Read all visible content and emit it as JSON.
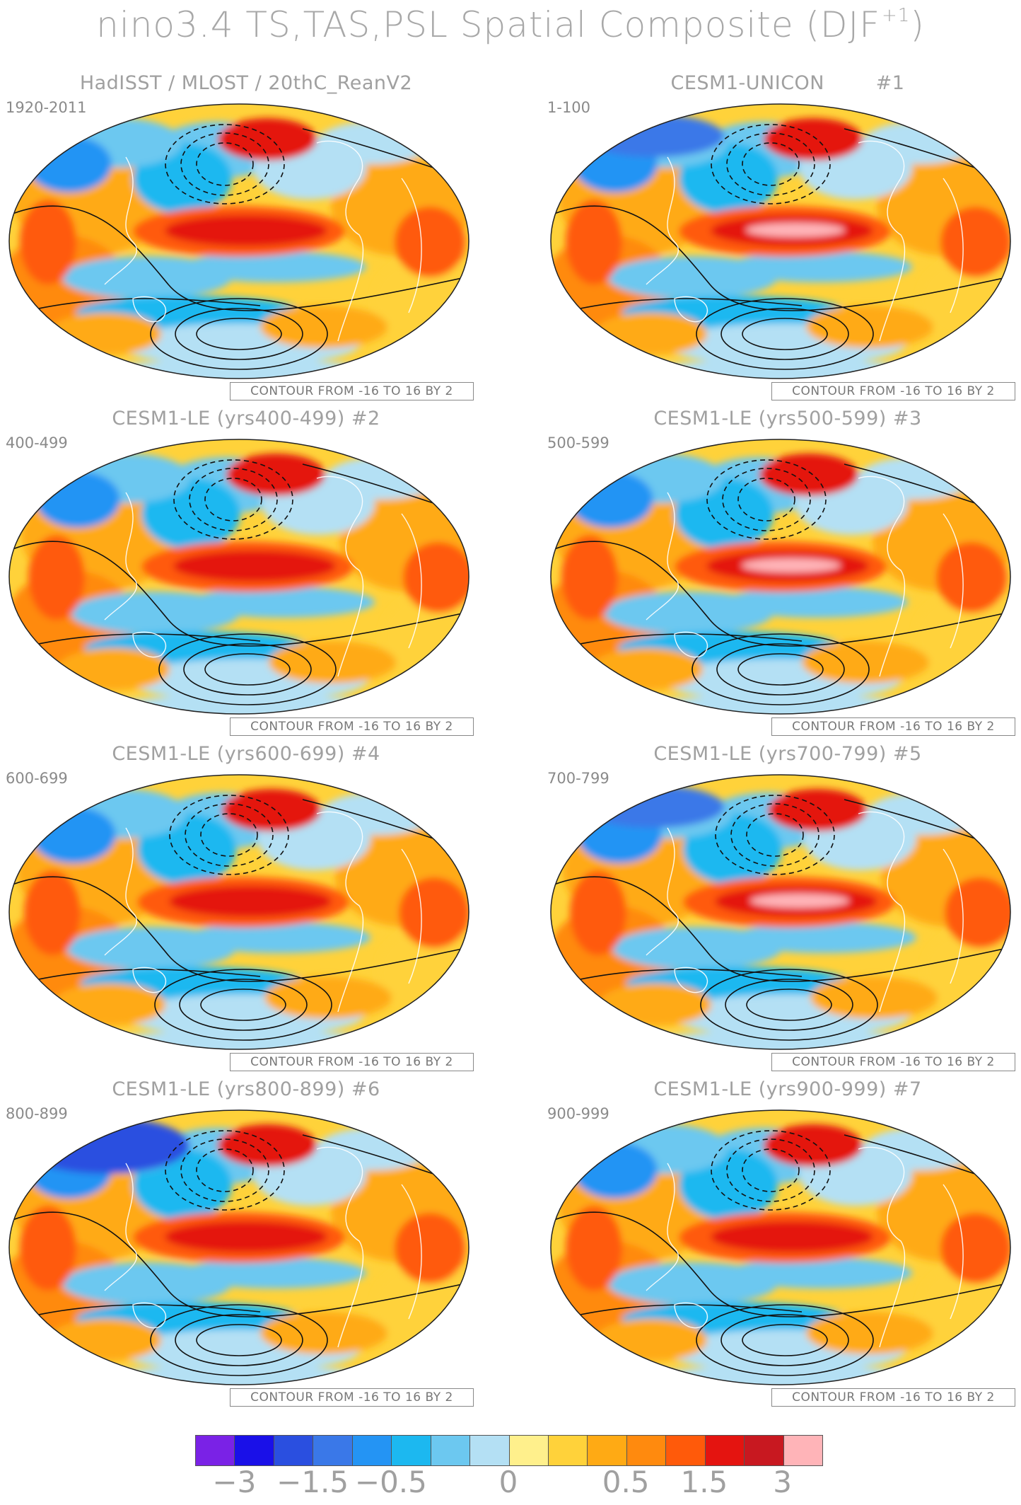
{
  "title": "nino3.4 TS,TAS,PSL Spatial Composite (DJF",
  "title_sup": "+1",
  "title_end": ")",
  "contour_note": "CONTOUR FROM -16 TO 16 BY 2",
  "panels": [
    {
      "title": "HadISST / MLOST / 20thC_ReanV2",
      "years": "1920-2011",
      "variant": 0
    },
    {
      "title": "CESM1-UNICON        #1",
      "years": "1-100",
      "variant": 1
    },
    {
      "title": "CESM1-LE (yrs400-499) #2",
      "years": "400-499",
      "variant": 2
    },
    {
      "title": "CESM1-LE (yrs500-599) #3",
      "years": "500-599",
      "variant": 3
    },
    {
      "title": "CESM1-LE (yrs600-699) #4",
      "years": "600-699",
      "variant": 4
    },
    {
      "title": "CESM1-LE (yrs700-799) #5",
      "years": "700-799",
      "variant": 5
    },
    {
      "title": "CESM1-LE (yrs800-899) #6",
      "years": "800-899",
      "variant": 6
    },
    {
      "title": "CESM1-LE (yrs900-999) #7",
      "years": "900-999",
      "variant": 7
    }
  ],
  "colorbar": {
    "colors": [
      "#7a22e6",
      "#1a10e8",
      "#2a4fe0",
      "#3a78e8",
      "#2494f4",
      "#1cb8f0",
      "#6cc8f0",
      "#b4e0f4",
      "#fff08c",
      "#ffd23a",
      "#ffaa14",
      "#ff8a0e",
      "#ff5a0a",
      "#e41410",
      "#c81820",
      "#ffb4b8"
    ],
    "labels": [
      {
        "text": "-3",
        "boundary": 1
      },
      {
        "text": "-1.5",
        "boundary": 3
      },
      {
        "text": "-0.5",
        "boundary": 5
      },
      {
        "text": "0",
        "boundary": 8
      },
      {
        "text": "0.5",
        "boundary": 11
      },
      {
        "text": "1.5",
        "boundary": 13
      },
      {
        "text": "3",
        "boundary": 15
      }
    ]
  }
}
